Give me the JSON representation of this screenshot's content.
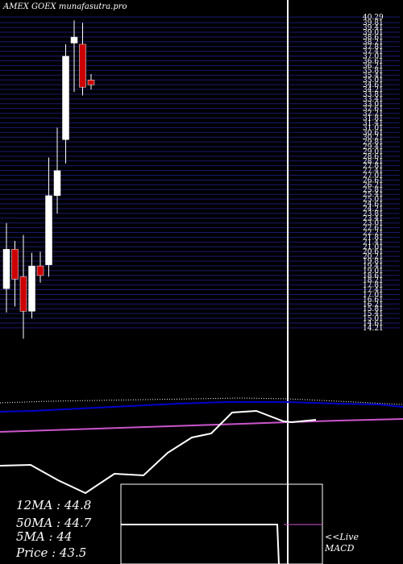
{
  "header": {
    "title": "AMEX  GOEX  munafasutra.pro"
  },
  "indicators": {
    "ma12": "12MA : 44.8",
    "ma50": "50MA : 44.7",
    "ma5": "5MA : 44",
    "price": "Price   : 43.5"
  },
  "macd_panel": {
    "live_label": "<<Live",
    "macd_label": "MACD"
  },
  "colors": {
    "background": "#000000",
    "grid": "#1a1a70",
    "up_candle": "#ffffff",
    "down_candle": "#cc0000",
    "ma_dotted": "#ffffff",
    "ma_blue": "#0000cc",
    "ma_magenta": "#cc55cc",
    "oscillator": "#ffffff"
  },
  "chart_data": {
    "type": "candlestick",
    "y_axis_top_label": "40.29",
    "price_levels": [
      40.29,
      39.81,
      39.41,
      39.01,
      38.61,
      38.21,
      37.81,
      37.41,
      37.01,
      36.61,
      36.21,
      35.81,
      35.41,
      35.01,
      34.61,
      34.21,
      33.81,
      33.41,
      33.01,
      32.61,
      32.21,
      31.81,
      31.41,
      31.01,
      30.61,
      30.21,
      29.81,
      29.41,
      29.01,
      28.61,
      28.21,
      27.81,
      27.41,
      27.01,
      26.61,
      26.21,
      25.81,
      25.41,
      25.01,
      24.61,
      24.21,
      23.81,
      23.41,
      23.01,
      22.61,
      22.21,
      21.81,
      21.41,
      21.01,
      20.61,
      20.21,
      19.81,
      19.41,
      19.01,
      18.61,
      18.21,
      17.81,
      17.41,
      17.01,
      16.61,
      16.21,
      15.81,
      15.41,
      15.01,
      14.61,
      14.21
    ],
    "ylim": [
      14.0,
      40.7
    ],
    "candles": [
      {
        "open": 17.5,
        "high": 23.0,
        "low": 15.5,
        "close": 20.8
      },
      {
        "open": 20.8,
        "high": 21.5,
        "low": 16.0,
        "close": 18.3
      },
      {
        "open": 18.5,
        "high": 22.0,
        "low": 13.3,
        "close": 15.6
      },
      {
        "open": 15.6,
        "high": 20.5,
        "low": 15.0,
        "close": 19.4
      },
      {
        "open": 19.4,
        "high": 20.6,
        "low": 18.0,
        "close": 18.6
      },
      {
        "open": 19.5,
        "high": 28.5,
        "low": 18.5,
        "close": 25.3
      },
      {
        "open": 25.3,
        "high": 31.0,
        "low": 23.8,
        "close": 27.4
      },
      {
        "open": 30.0,
        "high": 38.0,
        "low": 28.0,
        "close": 37.0
      },
      {
        "open": 38.1,
        "high": 40.0,
        "low": 34.0,
        "close": 38.6
      },
      {
        "open": 38.0,
        "high": 39.8,
        "low": 33.7,
        "close": 34.4
      },
      {
        "open": 35.0,
        "high": 35.5,
        "low": 34.2,
        "close": 34.6
      }
    ]
  }
}
